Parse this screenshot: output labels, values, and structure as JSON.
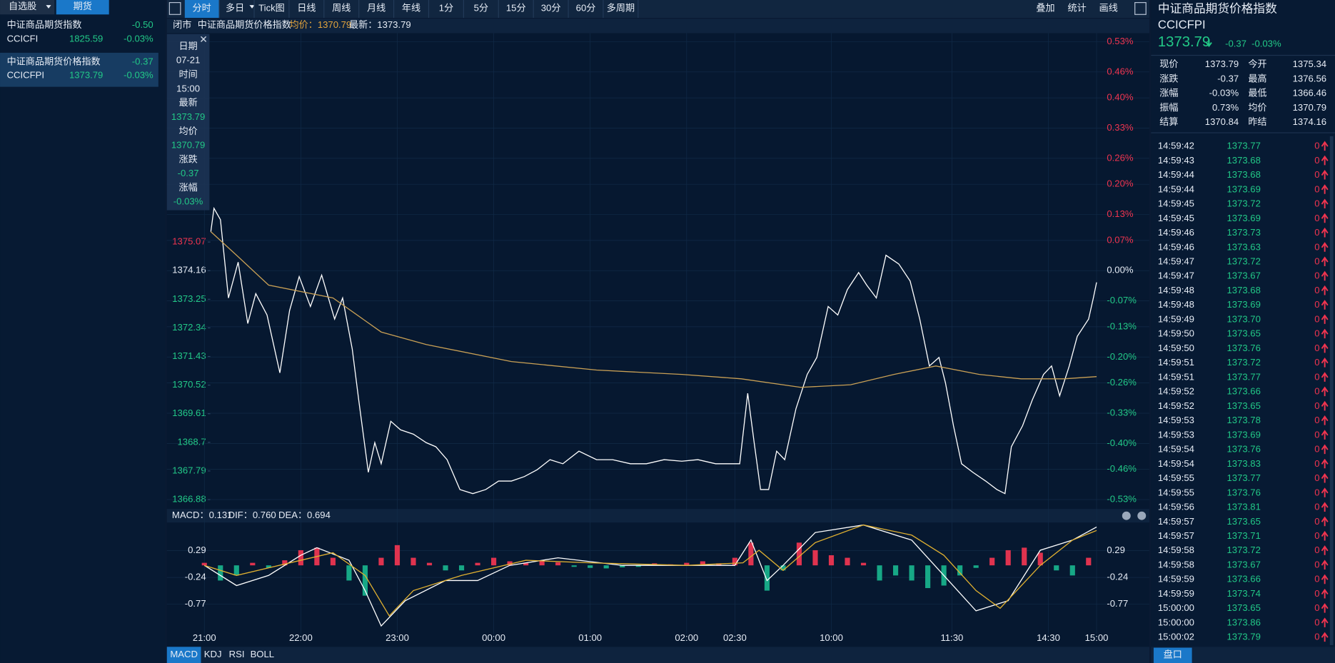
{
  "sidebar": {
    "tabs": [
      "自选股",
      "期货"
    ],
    "items": [
      {
        "name": "中证商品期货指数",
        "change": "-0.50",
        "code": "CCICFI",
        "price": "1825.59",
        "pct": "-0.03%"
      },
      {
        "name": "中证商品期货价格指数",
        "change": "-0.37",
        "code": "CCICFPI",
        "price": "1373.79",
        "pct": "-0.03%"
      }
    ]
  },
  "toolbar": {
    "buttons": [
      "分时",
      "多日",
      "Tick图",
      "日线",
      "周线",
      "月线",
      "年线",
      "1分",
      "5分",
      "15分",
      "30分",
      "60分",
      "多周期"
    ],
    "right": [
      "叠加",
      "统计",
      "画线"
    ]
  },
  "chart_header": {
    "status": "闭市",
    "name": "中证商品期货价格指数",
    "avg": "均价：1370.79",
    "last": "最新：1373.79"
  },
  "tooltip": [
    [
      "日期",
      "07-21"
    ],
    [
      "时间",
      "15:00"
    ],
    [
      "最新",
      "1373.79"
    ],
    [
      "均价",
      "1370.79"
    ],
    [
      "涨跌",
      "-0.37"
    ],
    [
      "涨幅",
      "-0.03%"
    ]
  ],
  "chart_data": [
    {
      "type": "line",
      "xlim": [
        0,
        555
      ],
      "xticks": [
        {
          "value": 0,
          "label": "21:00"
        },
        {
          "value": 60,
          "label": "22:00"
        },
        {
          "value": 120,
          "label": "23:00"
        },
        {
          "value": 180,
          "label": "00:00"
        },
        {
          "value": 240,
          "label": "01:00"
        },
        {
          "value": 300,
          "label": "02:00"
        },
        {
          "value": 330,
          "label": "02:30"
        },
        {
          "value": 390,
          "label": "10:00"
        },
        {
          "value": 465,
          "label": "11:30"
        },
        {
          "value": 525,
          "label": "14:30"
        },
        {
          "value": 555,
          "label": "15:00"
        }
      ],
      "ylim": [
        1366.88,
        1381.44
      ],
      "yticks": [
        1366.88,
        1367.79,
        1368.7,
        1369.61,
        1370.52,
        1371.43,
        1372.34,
        1373.25,
        1374.16,
        1375.07
      ],
      "y2lim": [
        -0.53,
        0.53
      ],
      "y2ticks": [
        {
          "value": 0.53,
          "label": "0.53%"
        },
        {
          "value": 0.46,
          "label": "0.46%"
        },
        {
          "value": 0.4,
          "label": "0.40%"
        },
        {
          "value": 0.33,
          "label": "0.33%"
        },
        {
          "value": 0.26,
          "label": "0.26%"
        },
        {
          "value": 0.2,
          "label": "0.20%"
        },
        {
          "value": 0.13,
          "label": "0.13%"
        },
        {
          "value": 0.07,
          "label": "0.07%"
        },
        {
          "value": 0,
          "label": "0.00%"
        },
        {
          "value": -0.07,
          "label": "-0.07%"
        },
        {
          "value": -0.13,
          "label": "-0.13%"
        },
        {
          "value": -0.2,
          "label": "-0.20%"
        },
        {
          "value": -0.26,
          "label": "-0.26%"
        },
        {
          "value": -0.33,
          "label": "-0.33%"
        },
        {
          "value": -0.4,
          "label": "-0.40%"
        },
        {
          "value": -0.46,
          "label": "-0.46%"
        },
        {
          "value": -0.53,
          "label": "-0.53%"
        }
      ],
      "grid": true,
      "series": [
        {
          "color": "#ffffff",
          "x": [
            4,
            6,
            10,
            15,
            21,
            27,
            32,
            39,
            47,
            53,
            59,
            66,
            73,
            81,
            86,
            92,
            96,
            102,
            106,
            110,
            116,
            122,
            130,
            138,
            144,
            151,
            159,
            167,
            175,
            183,
            191,
            199,
            207,
            215,
            223,
            233,
            244,
            254,
            265,
            275,
            286,
            297,
            307,
            318,
            328,
            333,
            338,
            342,
            346,
            351,
            356,
            361,
            368,
            375,
            381,
            388,
            394,
            400,
            407,
            412,
            418,
            424,
            432,
            439,
            445,
            451,
            457,
            461,
            466,
            471,
            478,
            486,
            493,
            498,
            502,
            509,
            515,
            522,
            527,
            532,
            538,
            543,
            550,
            553,
            555
          ],
          "values": [
            1375.4,
            1376.14,
            1375.78,
            1373.29,
            1374.43,
            1372.48,
            1373.43,
            1372.75,
            1370.91,
            1372.89,
            1373.97,
            1373.02,
            1374.02,
            1372.62,
            1373.29,
            1371.67,
            1370.05,
            1367.75,
            1368.69,
            1368.02,
            1369.37,
            1369.1,
            1368.96,
            1368.69,
            1368.56,
            1368.15,
            1367.2,
            1367.07,
            1367.2,
            1367.47,
            1367.47,
            1367.61,
            1367.83,
            1368.15,
            1368.02,
            1368.42,
            1368.15,
            1368.15,
            1368.02,
            1368.02,
            1368.15,
            1368.1,
            1368.15,
            1368.02,
            1368.02,
            1368.02,
            1370.26,
            1368.69,
            1367.2,
            1367.2,
            1368.42,
            1368.15,
            1369.77,
            1370.86,
            1371.4,
            1373.02,
            1372.75,
            1373.56,
            1374.1,
            1373.7,
            1373.29,
            1374.65,
            1374.37,
            1373.83,
            1372.62,
            1371.13,
            1371.4,
            1370.59,
            1369.23,
            1368.02,
            1367.75,
            1367.47,
            1367.2,
            1367.07,
            1368.56,
            1369.23,
            1370.05,
            1370.86,
            1371.13,
            1370.18,
            1371.13,
            1372.07,
            1372.62,
            1373.29,
            1373.79
          ]
        },
        {
          "color": "#c9a055",
          "x": [
            4,
            20,
            40,
            80,
            110,
            138,
            191,
            244,
            297,
            334,
            371,
            402,
            429,
            455,
            482,
            508,
            535,
            555
          ],
          "values": [
            1375.4,
            1374.65,
            1373.7,
            1373.29,
            1372.21,
            1371.81,
            1371.27,
            1371.0,
            1370.86,
            1370.72,
            1370.45,
            1370.53,
            1370.86,
            1371.13,
            1370.86,
            1370.72,
            1370.72,
            1370.79
          ]
        }
      ]
    },
    {
      "type": "macd",
      "ylim": [
        -1.36,
        0.83
      ],
      "yticks": [
        0.29,
        -0.24,
        -0.77
      ],
      "legend": [
        {
          "text": "MACD：0.131",
          "color": "#e35ee6"
        },
        {
          "text": "DIF：0.760",
          "color": "#e6ecf5"
        },
        {
          "text": "DEA：0.694",
          "color": "#e3a43c"
        }
      ],
      "series": [
        {
          "type": "bar",
          "colors": [
            "#e0334f",
            "#17a886"
          ],
          "x": [
            0,
            10,
            20,
            30,
            40,
            50,
            60,
            70,
            80,
            90,
            100,
            110,
            120,
            130,
            140,
            150,
            160,
            170,
            180,
            190,
            200,
            210,
            220,
            230,
            240,
            250,
            260,
            270,
            280,
            290,
            300,
            310,
            320,
            330,
            340,
            350,
            360,
            370,
            380,
            390,
            400,
            410,
            420,
            430,
            440,
            450,
            460,
            470,
            480,
            490,
            500,
            510,
            520,
            530,
            540,
            550
          ],
          "values": [
            0.05,
            -0.3,
            -0.2,
            0.05,
            -0.05,
            0.1,
            0.3,
            0.35,
            0.15,
            -0.3,
            -0.6,
            0.15,
            0.4,
            0.15,
            0.05,
            -0.1,
            -0.1,
            0.05,
            0.15,
            0.08,
            0.05,
            0.1,
            0.06,
            -0.03,
            -0.05,
            -0.06,
            -0.04,
            -0.03,
            0.04,
            0.02,
            0.05,
            0.08,
            0.04,
            0.15,
            0.45,
            -0.5,
            -0.1,
            0.45,
            0.3,
            0.2,
            0.15,
            0.05,
            -0.3,
            -0.2,
            -0.3,
            -0.45,
            -0.4,
            -0.2,
            -0.05,
            0.15,
            0.3,
            0.35,
            0.25,
            -0.1,
            -0.2,
            0.15
          ]
        },
        {
          "type": "line",
          "color": "#ffffff",
          "x": [
            0,
            20,
            40,
            60,
            70,
            90,
            100,
            110,
            125,
            150,
            170,
            190,
            220,
            260,
            300,
            330,
            340,
            350,
            360,
            380,
            410,
            440,
            460,
            480,
            500,
            520,
            540,
            555
          ],
          "values": [
            0,
            -0.4,
            -0.2,
            0.2,
            0.35,
            0.1,
            -0.5,
            -1.2,
            -0.7,
            -0.3,
            -0.3,
            0,
            0.15,
            0,
            0,
            0,
            0.5,
            -0.3,
            0,
            0.65,
            0.8,
            0.5,
            -0.2,
            -0.9,
            -0.7,
            0.3,
            0.5,
            0.76
          ]
        },
        {
          "type": "line",
          "color": "#e0b030",
          "x": [
            0,
            20,
            60,
            80,
            100,
            115,
            130,
            160,
            200,
            240,
            300,
            335,
            345,
            360,
            380,
            410,
            440,
            460,
            480,
            495,
            520,
            540,
            555
          ],
          "values": [
            0,
            -0.2,
            0.1,
            0.25,
            -0.2,
            -1.0,
            -0.5,
            -0.2,
            0.1,
            0.05,
            0,
            0.05,
            0.3,
            -0.1,
            0.45,
            0.8,
            0.6,
            0.2,
            -0.5,
            -0.85,
            0,
            0.5,
            0.69
          ]
        }
      ]
    }
  ],
  "indicator_tabs": [
    "MACD",
    "KDJ",
    "RSI",
    "BOLL"
  ],
  "quote": {
    "name": "中证商品期货价格指数",
    "code": "CCICFPI",
    "price": "1373.79",
    "change": "-0.37",
    "pct": "-0.03%",
    "stats": [
      [
        {
          "label": "现价",
          "value": "1373.79",
          "color": "#22c987"
        },
        {
          "label": "今开",
          "value": "1375.34",
          "color": "#f0344f"
        }
      ],
      [
        {
          "label": "涨跌",
          "value": "-0.37",
          "color": "#22c987"
        },
        {
          "label": "最高",
          "value": "1376.56",
          "color": "#f0344f"
        }
      ],
      [
        {
          "label": "涨幅",
          "value": "-0.03%",
          "color": "#22c987"
        },
        {
          "label": "最低",
          "value": "1366.46",
          "color": "#22c987"
        }
      ],
      [
        {
          "label": "振幅",
          "value": "0.73%",
          "color": "#e6ecf5"
        },
        {
          "label": "均价",
          "value": "1370.79",
          "color": "#22c987"
        }
      ],
      [
        {
          "label": "结算",
          "value": "1370.84",
          "color": "#22c987"
        },
        {
          "label": "昨结",
          "value": "1374.16",
          "color": "#e6ecf5"
        }
      ]
    ]
  },
  "trades": [
    [
      "14:59:42",
      "1373.77",
      "0"
    ],
    [
      "14:59:43",
      "1373.68",
      "0"
    ],
    [
      "14:59:44",
      "1373.68",
      "0"
    ],
    [
      "14:59:44",
      "1373.69",
      "0"
    ],
    [
      "14:59:45",
      "1373.72",
      "0"
    ],
    [
      "14:59:45",
      "1373.69",
      "0"
    ],
    [
      "14:59:46",
      "1373.73",
      "0"
    ],
    [
      "14:59:46",
      "1373.63",
      "0"
    ],
    [
      "14:59:47",
      "1373.72",
      "0"
    ],
    [
      "14:59:47",
      "1373.67",
      "0"
    ],
    [
      "14:59:48",
      "1373.68",
      "0"
    ],
    [
      "14:59:48",
      "1373.69",
      "0"
    ],
    [
      "14:59:49",
      "1373.70",
      "0"
    ],
    [
      "14:59:50",
      "1373.65",
      "0"
    ],
    [
      "14:59:50",
      "1373.76",
      "0"
    ],
    [
      "14:59:51",
      "1373.72",
      "0"
    ],
    [
      "14:59:51",
      "1373.77",
      "0"
    ],
    [
      "14:59:52",
      "1373.66",
      "0"
    ],
    [
      "14:59:52",
      "1373.65",
      "0"
    ],
    [
      "14:59:53",
      "1373.78",
      "0"
    ],
    [
      "14:59:53",
      "1373.69",
      "0"
    ],
    [
      "14:59:54",
      "1373.76",
      "0"
    ],
    [
      "14:59:54",
      "1373.83",
      "0"
    ],
    [
      "14:59:55",
      "1373.77",
      "0"
    ],
    [
      "14:59:55",
      "1373.76",
      "0"
    ],
    [
      "14:59:56",
      "1373.81",
      "0"
    ],
    [
      "14:59:57",
      "1373.65",
      "0"
    ],
    [
      "14:59:57",
      "1373.71",
      "0"
    ],
    [
      "14:59:58",
      "1373.72",
      "0"
    ],
    [
      "14:59:58",
      "1373.67",
      "0"
    ],
    [
      "14:59:59",
      "1373.66",
      "0"
    ],
    [
      "14:59:59",
      "1373.74",
      "0"
    ],
    [
      "15:00:00",
      "1373.65",
      "0"
    ],
    [
      "15:00:00",
      "1373.86",
      "0"
    ],
    [
      "15:00:02",
      "1373.79",
      "0"
    ]
  ],
  "panel_button": "盘口"
}
